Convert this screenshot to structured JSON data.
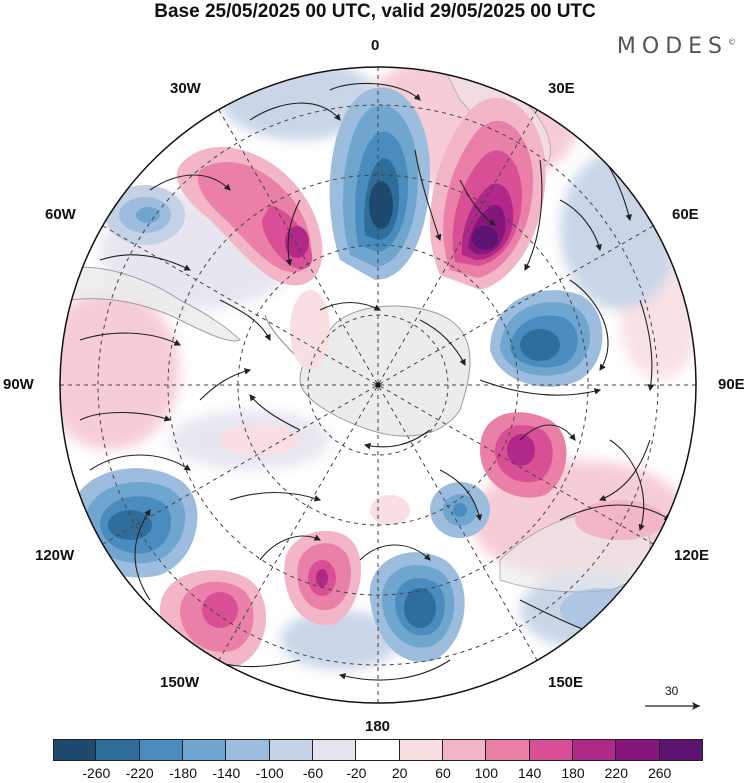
{
  "title": "Base 25/05/2025 00 UTC, valid 29/05/2025 00 UTC",
  "brand": "MODES",
  "brand_mark": "©",
  "lon_labels": {
    "north": "0",
    "ne30": "30E",
    "nw30": "30W",
    "e60": "60E",
    "w60": "60W",
    "e90": "90E",
    "w90": "90W",
    "e120": "120E",
    "w120": "120W",
    "e150": "150E",
    "w150": "150W",
    "south": "180"
  },
  "reference_vector_label": "30",
  "colorbar": {
    "colors": [
      "#1e4a70",
      "#2f6d9a",
      "#4a8cbe",
      "#6fa6d0",
      "#9dbddf",
      "#c5d1e6",
      "#e6e3ef",
      "#ffffff",
      "#f9dfe1",
      "#f3b6c6",
      "#ea7fa8",
      "#d94f95",
      "#b02888",
      "#86157e",
      "#5c1470"
    ],
    "tick_labels": [
      "-260",
      "-220",
      "-180",
      "-140",
      "-100",
      "-60",
      "-20",
      "20",
      "60",
      "100",
      "140",
      "180",
      "220",
      "260"
    ]
  },
  "legend_colors": {
    "land": "#ececec",
    "coast": "#8a8a8a"
  }
}
